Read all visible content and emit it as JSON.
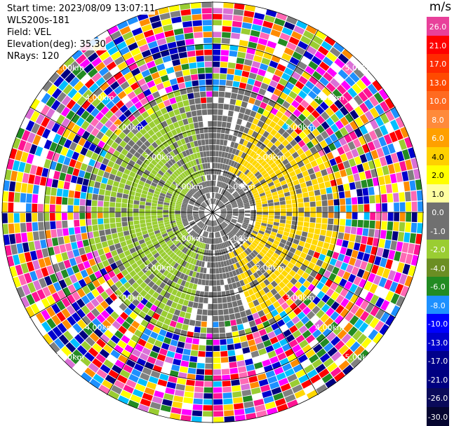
{
  "info": {
    "start_time": "Start time: 2023/08/09 13:07:11",
    "site": "WLS200s-181",
    "field": "Field: VEL",
    "elevation": "Elevation(deg): 35.30",
    "nrays": "NRays: 120"
  },
  "colorbar": {
    "unit": "m/s",
    "labels": [
      "26.0",
      "21.0",
      "17.0",
      "13.0",
      "10.0",
      "8.0",
      "6.0",
      "4.0",
      "2.0",
      "1.0",
      "0.0",
      "-1.0",
      "-2.0",
      "-4.0",
      "-6.0",
      "-8.0",
      "-10.0",
      "-13.0",
      "-17.0",
      "-21.0",
      "-26.0",
      "-30.0"
    ],
    "colors": [
      "#e8409a",
      "#ff0000",
      "#ff2a00",
      "#ff4a00",
      "#ff6a20",
      "#ff8a3a",
      "#ffa000",
      "#ffd000",
      "#ffff00",
      "#ffffa0",
      "#707070",
      "#707070",
      "#9acd32",
      "#6b8e23",
      "#228b22",
      "#1e90ff",
      "#0000ff",
      "#0000cd",
      "#00008b",
      "#000080",
      "#0a0a5a",
      "#050530"
    ]
  },
  "ring_labels": [
    "1.00km",
    "2.00km",
    "3.00km",
    "4.00km",
    "5.00km"
  ],
  "zones": {
    "inner_colors": [
      "#707070",
      "#ffd700",
      "#9acd32"
    ],
    "noise_palette": [
      "#ff1493",
      "#ff00ff",
      "#ffff00",
      "#ff8c00",
      "#0000cd",
      "#000080",
      "#ff0000",
      "#00bfff",
      "#9acd32",
      "#228b22",
      "#1e90ff",
      "#ffd700",
      "#ff69b4",
      "#da70d6",
      "#808080"
    ]
  }
}
